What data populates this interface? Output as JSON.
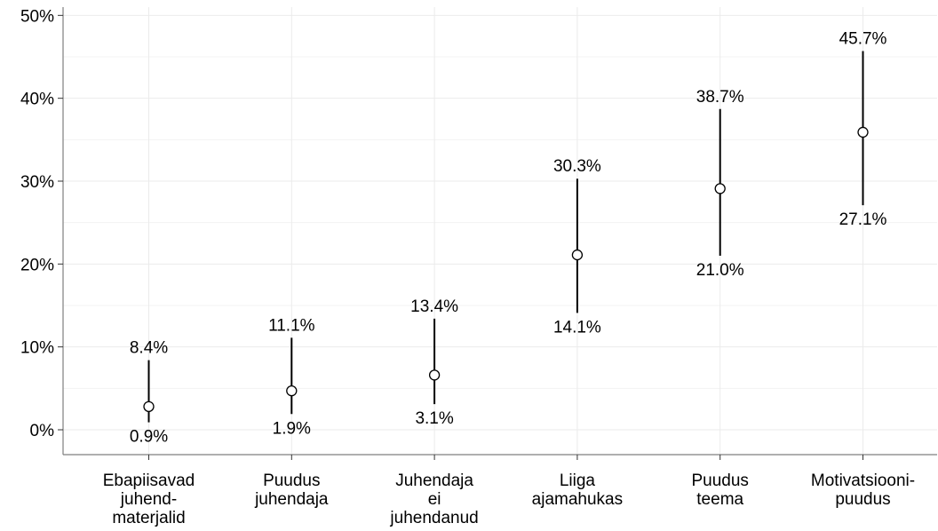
{
  "chart_data": {
    "type": "scatter",
    "title": "",
    "xlabel": "",
    "ylabel": "",
    "ylim": [
      -3,
      51
    ],
    "y_ticks": [
      "0%",
      "10%",
      "20%",
      "30%",
      "40%",
      "50%"
    ],
    "y_tick_values": [
      0,
      10,
      20,
      30,
      40,
      50
    ],
    "grid": true,
    "colors": {
      "line": "#000000",
      "point_fill": "#ffffff",
      "grid": "#ebebeb",
      "axis": "#7f7f7f"
    },
    "categories": [
      [
        "Ebapiisavad",
        "juhend-",
        "materjalid"
      ],
      [
        "Puudus",
        "juhendaja"
      ],
      [
        "Juhendaja",
        "ei",
        "juhendanud"
      ],
      [
        "Liiga",
        "ajamahukas"
      ],
      [
        "Puudus",
        "teema"
      ],
      [
        "Motivatsiooni-",
        "puudus"
      ]
    ],
    "series": [
      {
        "point": [
          2.8,
          4.7,
          6.6,
          21.1,
          29.1,
          35.9
        ],
        "lower": [
          0.9,
          1.9,
          3.1,
          14.1,
          21.0,
          27.1
        ],
        "upper": [
          8.4,
          11.1,
          13.4,
          30.3,
          38.7,
          45.7
        ],
        "lower_labels": [
          "0.9%",
          "1.9%",
          "3.1%",
          "14.1%",
          "21.0%",
          "27.1%"
        ],
        "upper_labels": [
          "8.4%",
          "11.1%",
          "13.4%",
          "30.3%",
          "38.7%",
          "45.7%"
        ]
      }
    ]
  }
}
